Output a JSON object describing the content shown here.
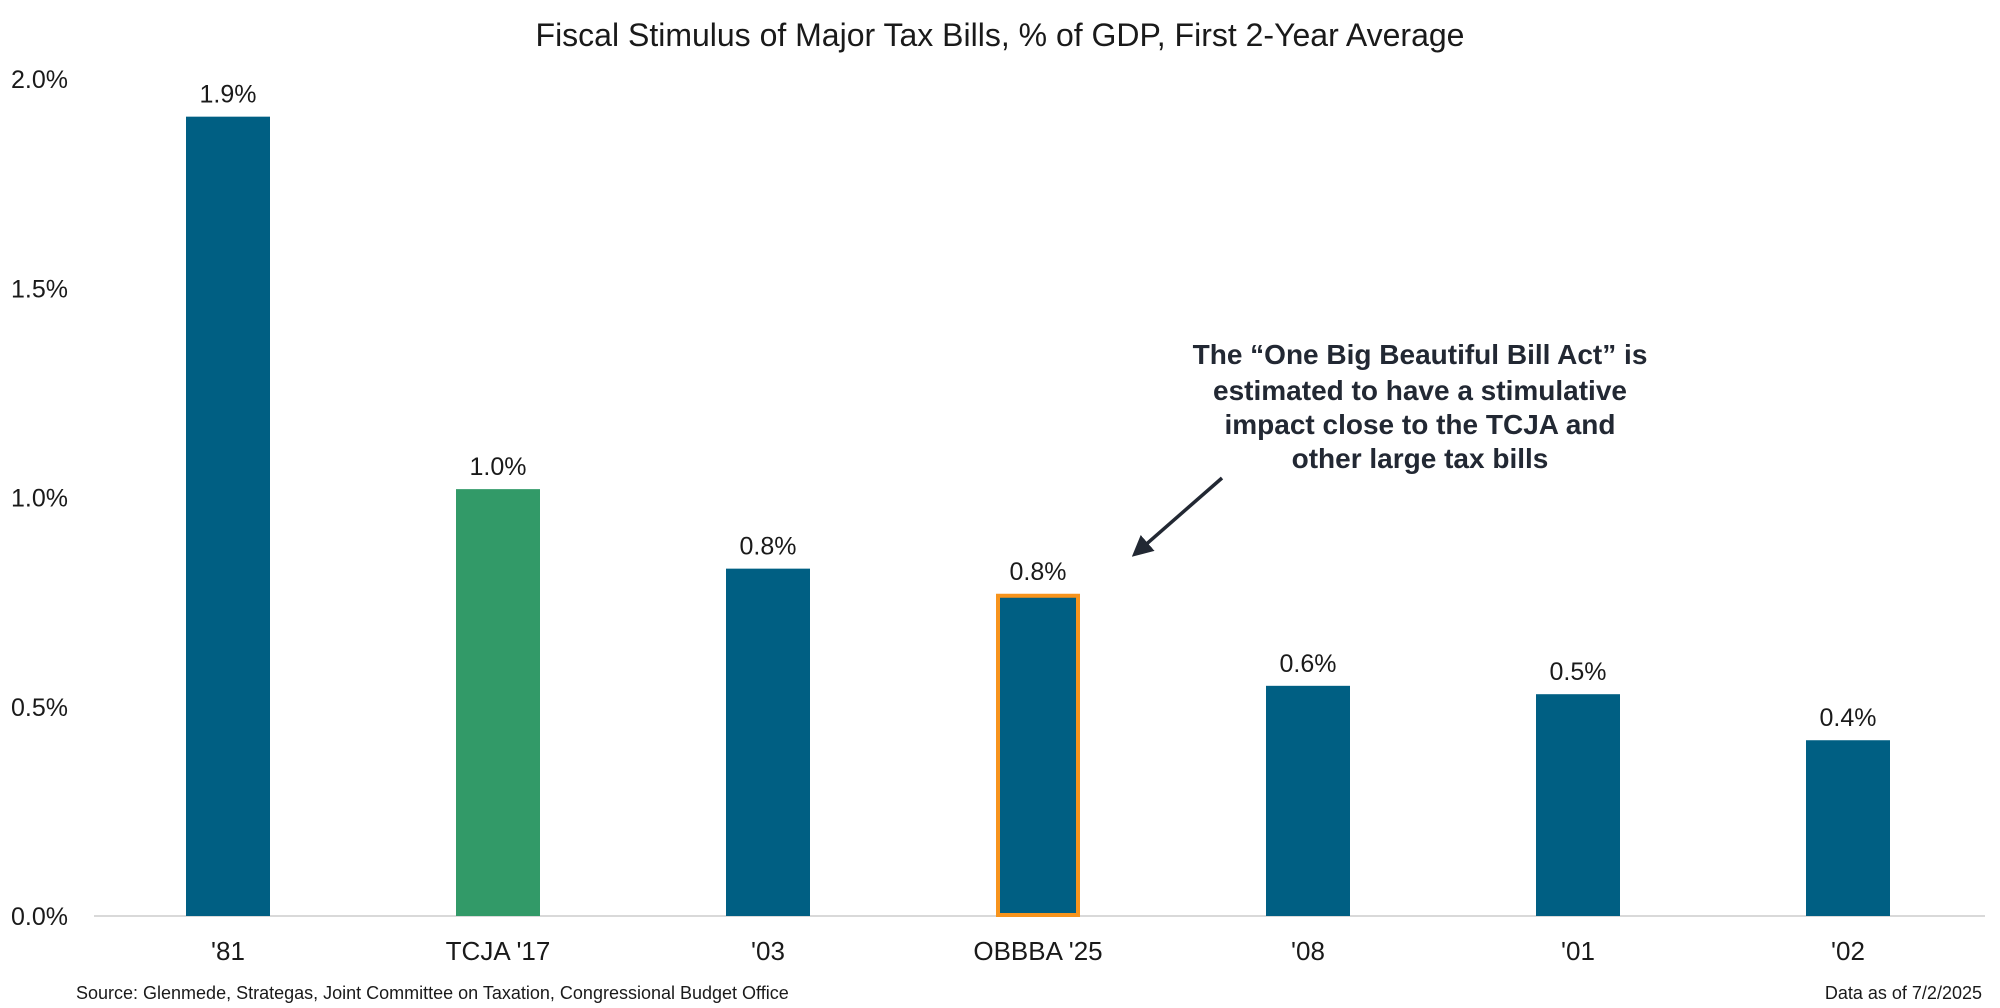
{
  "chart_data": {
    "type": "bar",
    "title": "Fiscal Stimulus of Major Tax Bills, % of GDP, First 2-Year Average",
    "xlabel": "",
    "ylabel": "",
    "categories": [
      "'81",
      "TCJA '17",
      "'03",
      "OBBBA '25",
      "'08",
      "'01",
      "'02"
    ],
    "values": [
      1.91,
      1.02,
      0.83,
      0.77,
      0.55,
      0.53,
      0.42
    ],
    "data_labels": [
      "1.9%",
      "1.0%",
      "0.8%",
      "0.8%",
      "0.6%",
      "0.5%",
      "0.4%"
    ],
    "bar_colors": [
      "#005f83",
      "#329a68",
      "#005f83",
      "#005f83",
      "#005f83",
      "#005f83",
      "#005f83"
    ],
    "highlight_index": 3,
    "highlight_outline_color": "#f7941d",
    "ylim": [
      0,
      2.0
    ],
    "yticks": [
      0,
      0.5,
      1.0,
      1.5,
      2.0
    ],
    "ytick_labels": [
      "0.0%",
      "0.5%",
      "1.0%",
      "1.5%",
      "2.0%"
    ],
    "grid": false,
    "legend": "none",
    "annotation": {
      "lines": [
        "The “One Big Beautiful Bill Act” is",
        "estimated to have a stimulative",
        "impact close to the TCJA and",
        "other large tax bills"
      ],
      "target_category": "OBBBA '25",
      "arrow_color": "#222833"
    }
  },
  "footer": {
    "source": "Source: Glenmede, Strategas, Joint Committee on Taxation, Congressional Budget Office",
    "date": "Data as of 7/2/2025"
  }
}
